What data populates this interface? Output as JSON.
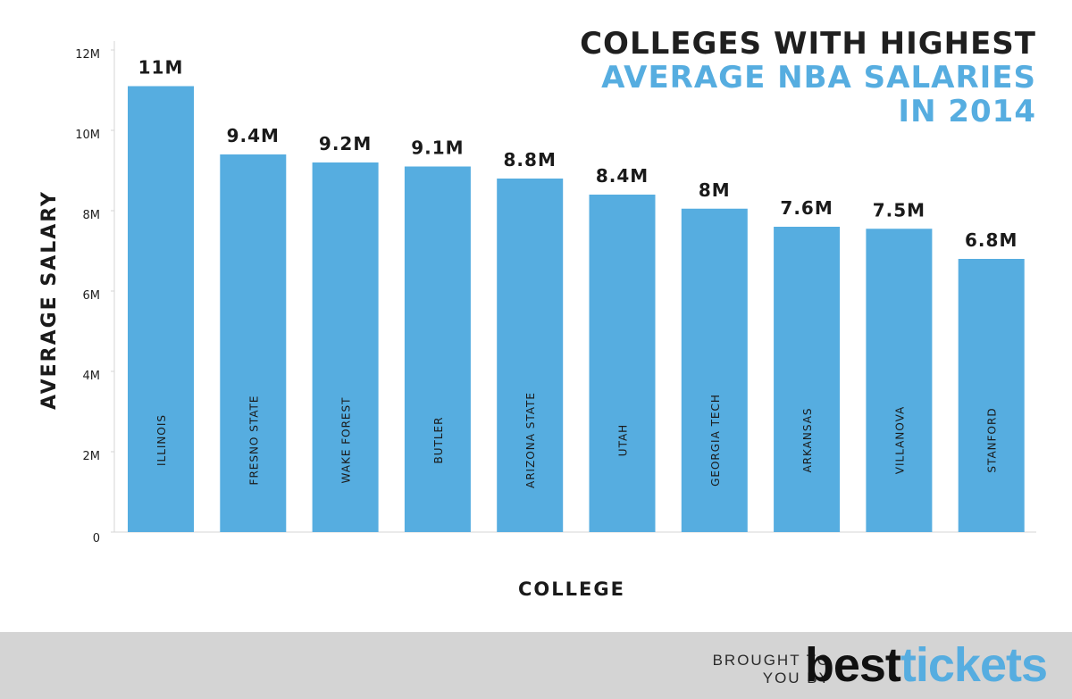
{
  "title": {
    "line1": "COLLEGES WITH HIGHEST",
    "line2": "AVERAGE NBA SALARIES",
    "line3": "IN 2014"
  },
  "footer": {
    "credit_line1": "BROUGHT TO",
    "credit_line2": "YOU BY",
    "brand_part1": "best",
    "brand_part2": "tickets"
  },
  "colors": {
    "bar": "#56ade0",
    "title_accent": "#56ade0",
    "title_dark": "#1f1f1f",
    "footer_bg": "#d4d4d4"
  },
  "chart_data": {
    "type": "bar",
    "xlabel": "COLLEGE",
    "ylabel": "AVERAGE SALARY",
    "ylim": [
      0,
      12
    ],
    "yticks": [
      {
        "value": 0,
        "label": "0"
      },
      {
        "value": 2,
        "label": "2M"
      },
      {
        "value": 4,
        "label": "4M"
      },
      {
        "value": 6,
        "label": "6M"
      },
      {
        "value": 8,
        "label": "8M"
      },
      {
        "value": 10,
        "label": "10M"
      },
      {
        "value": 12,
        "label": "12M"
      }
    ],
    "grid": false,
    "categories": [
      "ILLINOIS",
      "FRESNO STATE",
      "WAKE FOREST",
      "BUTLER",
      "ARIZONA STATE",
      "UTAH",
      "GEORGIA TECH",
      "ARKANSAS",
      "VILLANOVA",
      "STANFORD"
    ],
    "values": [
      11.1,
      9.4,
      9.2,
      9.1,
      8.8,
      8.4,
      8.05,
      7.6,
      7.55,
      6.8
    ],
    "value_labels": [
      "11M",
      "9.4M",
      "9.2M",
      "9.1M",
      "8.8M",
      "8.4M",
      "8M",
      "7.6M",
      "7.5M",
      "6.8M"
    ]
  }
}
